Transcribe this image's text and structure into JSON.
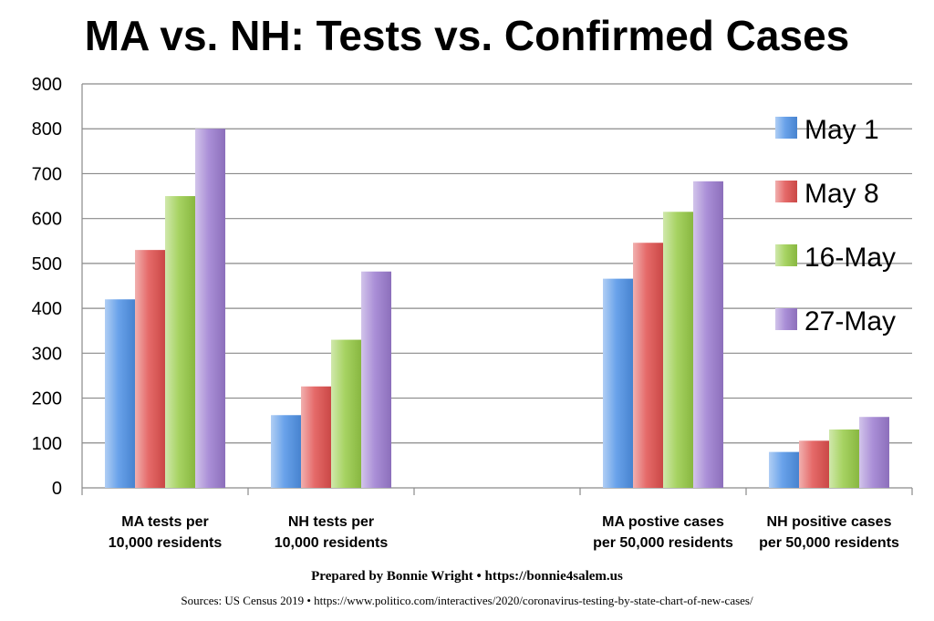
{
  "title": "MA vs. NH: Tests vs. Confirmed Cases",
  "prepared_by": "Prepared by Bonnie Wright • https://bonnie4salem.us",
  "sources": "Sources: US Census 2019 • https://www.politico.com/interactives/2020/coronavirus-testing-by-state-chart-of-new-cases/",
  "colors": {
    "May 1": "#4f92e6",
    "May 8": "#e0504e",
    "16-May": "#97cb47",
    "27-May": "#9b7bd0"
  },
  "chart_data": {
    "type": "bar",
    "categories": [
      [
        "MA tests per",
        "10,000 residents"
      ],
      [
        "NH tests per",
        "10,000 residents"
      ],
      [
        "",
        ""
      ],
      [
        "MA postive cases",
        "per 50,000 residents"
      ],
      [
        "NH positive cases",
        "per 50,000 residents"
      ]
    ],
    "series": [
      {
        "name": "May 1",
        "values": [
          420,
          162,
          null,
          466,
          80
        ]
      },
      {
        "name": "May 8",
        "values": [
          530,
          226,
          null,
          546,
          105
        ]
      },
      {
        "name": "16-May",
        "values": [
          650,
          330,
          null,
          615,
          130
        ]
      },
      {
        "name": "27-May",
        "values": [
          800,
          482,
          null,
          683,
          158
        ]
      }
    ],
    "ylim": [
      0,
      900
    ],
    "yticks": [
      0,
      100,
      200,
      300,
      400,
      500,
      600,
      700,
      800,
      900
    ],
    "grid": true,
    "legend_position": "right"
  }
}
